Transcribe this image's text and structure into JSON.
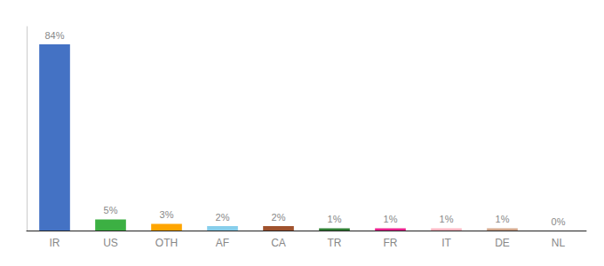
{
  "chart_data": {
    "type": "bar",
    "categories": [
      "IR",
      "US",
      "OTH",
      "AF",
      "CA",
      "TR",
      "FR",
      "IT",
      "DE",
      "NL"
    ],
    "values": [
      84,
      5,
      3,
      2,
      2,
      1,
      1,
      1,
      1,
      0
    ],
    "value_labels": [
      "84%",
      "5%",
      "3%",
      "2%",
      "2%",
      "1%",
      "1%",
      "1%",
      "1%",
      "0%"
    ],
    "colors": [
      "#4472C4",
      "#3CB043",
      "#FFA500",
      "#87CEEB",
      "#A0522D",
      "#2E7D32",
      "#E91E8C",
      "#FFB6C1",
      "#D2A68A",
      "#CCCCCC"
    ],
    "ylim": [
      0,
      92
    ],
    "data_labels": true,
    "tick_labels": "x",
    "grid": false
  }
}
